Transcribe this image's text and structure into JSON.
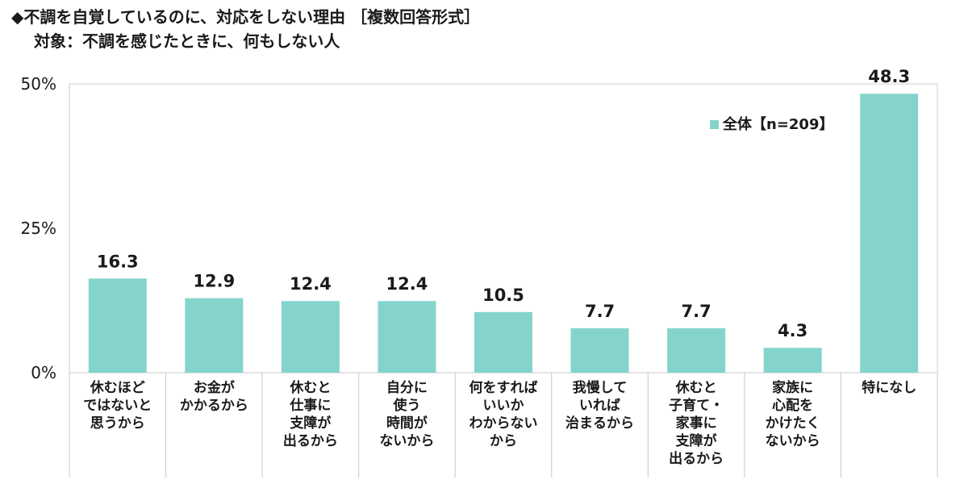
{
  "header": {
    "title": "◆不調を自覚しているのに、対応をしない理由 ［複数回答形式］",
    "subtitle": "対象：不調を感じたときに、何もしない人"
  },
  "chart_data": {
    "type": "bar",
    "categories": [
      [
        "休むほど",
        "ではないと",
        "思うから"
      ],
      [
        "お金が",
        "かかるから"
      ],
      [
        "休むと",
        "仕事に",
        "支障が",
        "出るから"
      ],
      [
        "自分に",
        "使う",
        "時間が",
        "ないから"
      ],
      [
        "何をすれば",
        "いいか",
        "わからない",
        "から"
      ],
      [
        "我慢して",
        "いれば",
        "治まるから"
      ],
      [
        "休むと",
        "子育て・",
        "家事に",
        "支障が",
        "出るから"
      ],
      [
        "家族に",
        "心配を",
        "かけたく",
        "ないから"
      ],
      [
        "特になし"
      ]
    ],
    "series": [
      {
        "name": "全体【n=209】",
        "values": [
          16.3,
          12.9,
          12.4,
          12.4,
          10.5,
          7.7,
          7.7,
          4.3,
          48.3
        ],
        "value_labels": [
          "16.3",
          "12.9",
          "12.4",
          "12.4",
          "10.5",
          "7.7",
          "7.7",
          "4.3",
          "48.3"
        ],
        "color": "#84d4cc"
      }
    ],
    "yticks": [
      {
        "value": 0,
        "label": "0%"
      },
      {
        "value": 25,
        "label": "25%"
      },
      {
        "value": 50,
        "label": "50%"
      }
    ],
    "ylim": [
      0,
      50
    ],
    "xlabel": "",
    "ylabel": "",
    "legend": "top-right",
    "grid": false
  }
}
